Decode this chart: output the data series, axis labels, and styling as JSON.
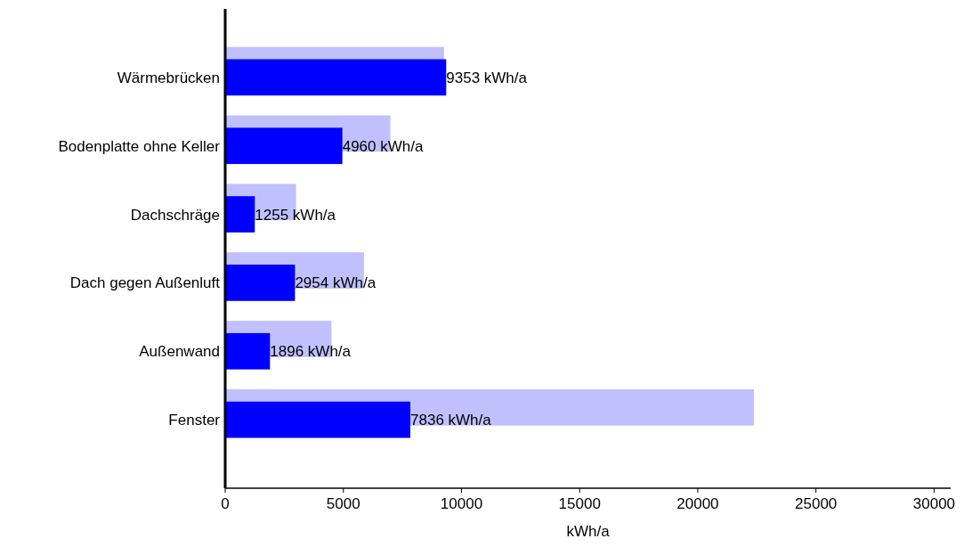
{
  "chart_data": {
    "type": "bar",
    "orientation": "horizontal",
    "xlabel": "kWh/a",
    "categories": [
      "Wärmebrücken",
      "Bodenplatte ohne Keller",
      "Dachschräge",
      "Dach gegen Außenluft",
      "Außenwand",
      "Fenster"
    ],
    "series": [
      {
        "color": "#c0c0ff",
        "values": [
          9260,
          6990,
          3000,
          5870,
          4500,
          22380
        ]
      },
      {
        "color": "#0000ff",
        "values": [
          9353,
          4960,
          1255,
          2954,
          1896,
          7836
        ],
        "value_labels": [
          "9353 kWh/a",
          "4960 kWh/a",
          "1255 kWh/a",
          "2954 kWh/a",
          "1896 kWh/a",
          "7836 kWh/a"
        ]
      }
    ],
    "xlim": [
      0,
      30700
    ],
    "xticks": [
      0,
      5000,
      10000,
      15000,
      20000,
      25000,
      30000
    ],
    "grid": false
  }
}
